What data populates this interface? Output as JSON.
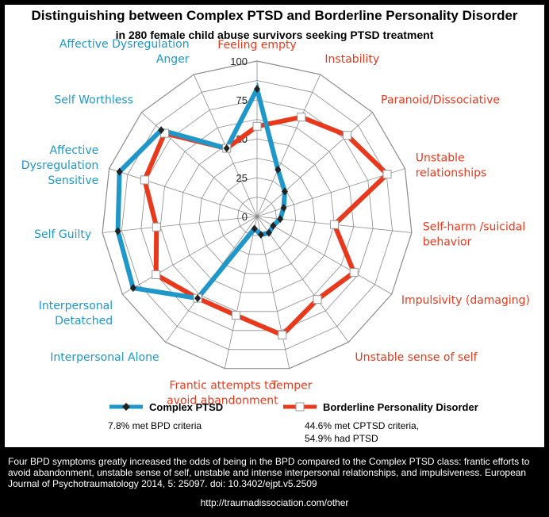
{
  "chart_data": {
    "type": "radar",
    "title": "Distinguishing between Complex PTSD and Borderline Personality Disorder",
    "subtitle": "in 280 female child abuse survivors seeking PTSD treatment",
    "rlim": [
      0,
      100
    ],
    "ticks": [
      "0",
      "25",
      "50",
      "75",
      "100"
    ],
    "tick_values": [
      0,
      25,
      50,
      75,
      100
    ],
    "axes": [
      {
        "lines": [
          "Feeling empty"
        ],
        "color": "red"
      },
      {
        "lines": [
          "Instability"
        ],
        "color": "red"
      },
      {
        "lines": [
          "Paranoid/Dissociative"
        ],
        "color": "red"
      },
      {
        "lines": [
          "Unstable",
          "relationships"
        ],
        "color": "red"
      },
      {
        "lines": [
          "Self-harm /suicidal",
          "behavior"
        ],
        "color": "red"
      },
      {
        "lines": [
          "Impulsivity (damaging)"
        ],
        "color": "red"
      },
      {
        "lines": [
          "Unstable sense of self"
        ],
        "color": "red"
      },
      {
        "lines": [
          "Temper"
        ],
        "color": "red"
      },
      {
        "lines": [
          "Frantic attempts to",
          "avoid abandonment"
        ],
        "color": "red"
      },
      {
        "lines": [
          "Interpersonal Alone"
        ],
        "color": "blue"
      },
      {
        "lines": [
          "Interpersonal",
          "Detatched"
        ],
        "color": "blue"
      },
      {
        "lines": [
          "Self Guilty"
        ],
        "color": "blue"
      },
      {
        "lines": [
          "Affective",
          "Dysregulation",
          "Sensitive"
        ],
        "color": "blue"
      },
      {
        "lines": [
          "Self Worthless"
        ],
        "color": "blue"
      },
      {
        "lines": [
          "Affective Dysregulation",
          "Anger"
        ],
        "color": "blue"
      }
    ],
    "series": [
      {
        "name": "Complex PTSD",
        "values": [
          82,
          33,
          24,
          18,
          15,
          12,
          13,
          12,
          8,
          65,
          92,
          90,
          93,
          83,
          48
        ]
      },
      {
        "name": "Borderline Personality Disorder",
        "values": [
          58,
          70,
          78,
          88,
          50,
          72,
          66,
          78,
          65,
          65,
          75,
          65,
          76,
          80,
          48
        ]
      }
    ],
    "grid": true,
    "legend_position": "bottom"
  },
  "colors": {
    "complex_ptsd": "#1f97c8",
    "bpd": "#e8391c",
    "axis_label_red": "#e8391c",
    "axis_label_blue": "#1f97c8",
    "grid": "#8c8c8c"
  },
  "legend": {
    "series1_label": "Complex PTSD",
    "series2_label": "Borderline Personality Disorder",
    "series1_note": "7.8% met BPD criteria",
    "series2_note_line1": "44.6% met CPTSD criteria,",
    "series2_note_line2": "54.9% had PTSD"
  },
  "caption": "Four BPD symptoms greatly increased the odds of being in the BPD compared to the Complex PTSD class: frantic efforts to avoid abandonment, unstable sense of self, unstable and intense interpersonal relationships, and impulsiveness. European Journal of Psychotraumatology 2014, 5: 25097. doi: 10.3402/ejpt.v5.2509",
  "link": "http://traumadissociation.com/other"
}
